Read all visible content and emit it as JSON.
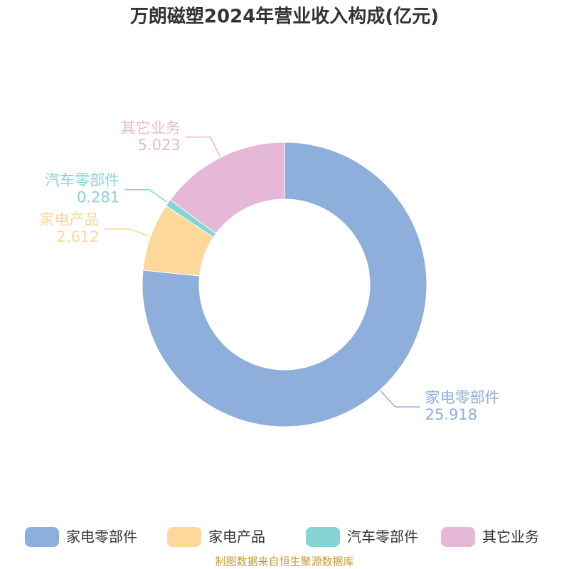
{
  "chart_data": {
    "type": "donut",
    "title": "万朗磁塑2024年营业收入构成(亿元)",
    "categories": [
      "家电零部件",
      "家电产品",
      "汽车零部件",
      "其它业务"
    ],
    "values": [
      25.918,
      2.612,
      0.281,
      5.023
    ],
    "colors": [
      "#8eaedb",
      "#fdd89a",
      "#86d4d6",
      "#e6b8d8"
    ],
    "legend": "bottom",
    "source": "制图数据来自恒生聚源数据库"
  }
}
